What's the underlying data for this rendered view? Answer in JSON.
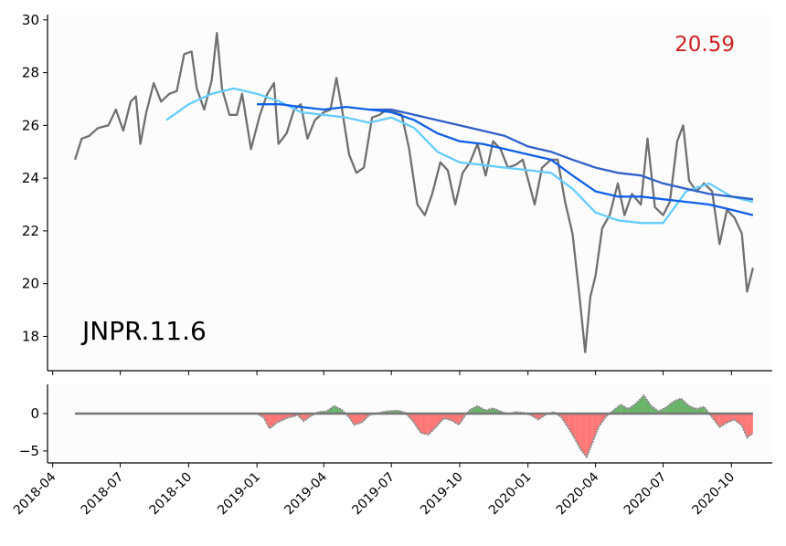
{
  "chart_data": [
    {
      "type": "line",
      "panel": "price",
      "annotation": "JNPR.11.6",
      "last_value_label": "20.59",
      "ylim": [
        16.7,
        30.2
      ],
      "yticks": [
        18,
        20,
        22,
        24,
        26,
        28,
        30
      ],
      "colors": {
        "price": "#707070",
        "short_ma": "#66ccff",
        "mid_ma": "#1060e8",
        "long_ma": "#3060c8",
        "last_value": "#cc2222"
      },
      "series": [
        {
          "key": "price",
          "values": [
            [
              "2018-05-01",
              24.7
            ],
            [
              "2018-05-10",
              25.5
            ],
            [
              "2018-05-20",
              25.6
            ],
            [
              "2018-06-01",
              25.9
            ],
            [
              "2018-06-15",
              26.0
            ],
            [
              "2018-06-25",
              26.6
            ],
            [
              "2018-07-05",
              25.8
            ],
            [
              "2018-07-15",
              26.9
            ],
            [
              "2018-07-22",
              27.1
            ],
            [
              "2018-07-28",
              25.3
            ],
            [
              "2018-08-05",
              26.5
            ],
            [
              "2018-08-15",
              27.6
            ],
            [
              "2018-08-25",
              26.9
            ],
            [
              "2018-09-05",
              27.2
            ],
            [
              "2018-09-15",
              27.3
            ],
            [
              "2018-09-25",
              28.7
            ],
            [
              "2018-10-05",
              28.8
            ],
            [
              "2018-10-12",
              27.4
            ],
            [
              "2018-10-22",
              26.6
            ],
            [
              "2018-11-01",
              27.7
            ],
            [
              "2018-11-08",
              29.5
            ],
            [
              "2018-11-15",
              27.4
            ],
            [
              "2018-11-25",
              26.4
            ],
            [
              "2018-12-05",
              26.4
            ],
            [
              "2018-12-12",
              27.2
            ],
            [
              "2018-12-24",
              25.1
            ],
            [
              "2019-01-05",
              26.4
            ],
            [
              "2019-01-15",
              27.2
            ],
            [
              "2019-01-24",
              27.6
            ],
            [
              "2019-01-30",
              25.3
            ],
            [
              "2019-02-10",
              25.7
            ],
            [
              "2019-02-20",
              26.6
            ],
            [
              "2019-03-01",
              26.8
            ],
            [
              "2019-03-10",
              25.5
            ],
            [
              "2019-03-20",
              26.2
            ],
            [
              "2019-04-01",
              26.5
            ],
            [
              "2019-04-10",
              26.6
            ],
            [
              "2019-04-18",
              27.8
            ],
            [
              "2019-04-25",
              26.7
            ],
            [
              "2019-05-05",
              24.9
            ],
            [
              "2019-05-15",
              24.2
            ],
            [
              "2019-05-25",
              24.4
            ],
            [
              "2019-06-05",
              26.3
            ],
            [
              "2019-06-15",
              26.4
            ],
            [
              "2019-06-25",
              26.6
            ],
            [
              "2019-07-05",
              26.5
            ],
            [
              "2019-07-15",
              26.4
            ],
            [
              "2019-07-25",
              25.1
            ],
            [
              "2019-08-05",
              23.0
            ],
            [
              "2019-08-15",
              22.6
            ],
            [
              "2019-08-25",
              23.4
            ],
            [
              "2019-09-05",
              24.6
            ],
            [
              "2019-09-15",
              24.3
            ],
            [
              "2019-09-25",
              23.0
            ],
            [
              "2019-10-05",
              24.2
            ],
            [
              "2019-10-15",
              24.6
            ],
            [
              "2019-10-25",
              25.3
            ],
            [
              "2019-11-05",
              24.1
            ],
            [
              "2019-11-15",
              25.4
            ],
            [
              "2019-11-25",
              25.1
            ],
            [
              "2019-12-05",
              24.4
            ],
            [
              "2019-12-15",
              24.5
            ],
            [
              "2019-12-25",
              24.7
            ],
            [
              "2020-01-10",
              23.0
            ],
            [
              "2020-01-20",
              24.4
            ],
            [
              "2020-02-01",
              24.7
            ],
            [
              "2020-02-10",
              24.7
            ],
            [
              "2020-02-20",
              23.1
            ],
            [
              "2020-03-01",
              21.9
            ],
            [
              "2020-03-10",
              19.6
            ],
            [
              "2020-03-18",
              17.4
            ],
            [
              "2020-03-25",
              19.5
            ],
            [
              "2020-04-01",
              20.3
            ],
            [
              "2020-04-10",
              22.1
            ],
            [
              "2020-04-20",
              22.6
            ],
            [
              "2020-05-01",
              23.8
            ],
            [
              "2020-05-10",
              22.6
            ],
            [
              "2020-05-20",
              23.4
            ],
            [
              "2020-06-01",
              23.0
            ],
            [
              "2020-06-10",
              25.5
            ],
            [
              "2020-06-20",
              22.9
            ],
            [
              "2020-07-01",
              22.6
            ],
            [
              "2020-07-10",
              23.1
            ],
            [
              "2020-07-20",
              25.4
            ],
            [
              "2020-07-28",
              26.0
            ],
            [
              "2020-08-05",
              23.9
            ],
            [
              "2020-08-15",
              23.5
            ],
            [
              "2020-08-25",
              23.8
            ],
            [
              "2020-09-05",
              23.5
            ],
            [
              "2020-09-15",
              21.5
            ],
            [
              "2020-09-25",
              22.8
            ],
            [
              "2020-10-05",
              22.5
            ],
            [
              "2020-10-15",
              21.9
            ],
            [
              "2020-10-22",
              19.7
            ],
            [
              "2020-10-30",
              20.6
            ]
          ]
        },
        {
          "key": "short_ma",
          "values": [
            [
              "2018-09-01",
              26.2
            ],
            [
              "2018-10-01",
              26.8
            ],
            [
              "2018-11-01",
              27.2
            ],
            [
              "2018-12-01",
              27.4
            ],
            [
              "2019-01-01",
              27.2
            ],
            [
              "2019-02-01",
              26.9
            ],
            [
              "2019-03-01",
              26.5
            ],
            [
              "2019-04-01",
              26.4
            ],
            [
              "2019-05-01",
              26.3
            ],
            [
              "2019-06-01",
              26.1
            ],
            [
              "2019-07-01",
              26.3
            ],
            [
              "2019-08-01",
              25.9
            ],
            [
              "2019-09-01",
              25.0
            ],
            [
              "2019-10-01",
              24.6
            ],
            [
              "2019-11-01",
              24.5
            ],
            [
              "2019-12-01",
              24.4
            ],
            [
              "2020-01-01",
              24.3
            ],
            [
              "2020-02-01",
              24.2
            ],
            [
              "2020-03-01",
              23.6
            ],
            [
              "2020-04-01",
              22.7
            ],
            [
              "2020-05-01",
              22.4
            ],
            [
              "2020-06-01",
              22.3
            ],
            [
              "2020-07-01",
              22.3
            ],
            [
              "2020-08-01",
              23.5
            ],
            [
              "2020-09-01",
              23.8
            ],
            [
              "2020-10-01",
              23.3
            ],
            [
              "2020-10-30",
              23.1
            ]
          ]
        },
        {
          "key": "mid_ma",
          "values": [
            [
              "2019-01-01",
              26.8
            ],
            [
              "2019-02-01",
              26.8
            ],
            [
              "2019-03-01",
              26.7
            ],
            [
              "2019-04-01",
              26.6
            ],
            [
              "2019-05-01",
              26.7
            ],
            [
              "2019-06-01",
              26.6
            ],
            [
              "2019-07-01",
              26.5
            ],
            [
              "2019-08-01",
              26.2
            ],
            [
              "2019-09-01",
              25.7
            ],
            [
              "2019-10-01",
              25.4
            ],
            [
              "2019-11-01",
              25.3
            ],
            [
              "2019-12-01",
              25.1
            ],
            [
              "2020-01-01",
              24.9
            ],
            [
              "2020-02-01",
              24.7
            ],
            [
              "2020-03-01",
              24.1
            ],
            [
              "2020-04-01",
              23.5
            ],
            [
              "2020-05-01",
              23.3
            ],
            [
              "2020-06-01",
              23.3
            ],
            [
              "2020-07-01",
              23.2
            ],
            [
              "2020-08-01",
              23.1
            ],
            [
              "2020-09-01",
              23.0
            ],
            [
              "2020-10-01",
              22.8
            ],
            [
              "2020-10-30",
              22.6
            ]
          ]
        },
        {
          "key": "long_ma",
          "values": [
            [
              "2019-06-01",
              26.6
            ],
            [
              "2019-07-01",
              26.6
            ],
            [
              "2019-08-01",
              26.4
            ],
            [
              "2019-09-01",
              26.2
            ],
            [
              "2019-10-01",
              26.0
            ],
            [
              "2019-11-01",
              25.8
            ],
            [
              "2019-12-01",
              25.6
            ],
            [
              "2020-01-01",
              25.2
            ],
            [
              "2020-02-01",
              25.0
            ],
            [
              "2020-03-01",
              24.7
            ],
            [
              "2020-04-01",
              24.4
            ],
            [
              "2020-05-01",
              24.2
            ],
            [
              "2020-06-01",
              24.1
            ],
            [
              "2020-07-01",
              23.8
            ],
            [
              "2020-08-01",
              23.6
            ],
            [
              "2020-09-01",
              23.4
            ],
            [
              "2020-10-01",
              23.3
            ],
            [
              "2020-10-30",
              23.2
            ]
          ]
        }
      ]
    },
    {
      "type": "area",
      "panel": "oscillator",
      "ylim": [
        -6.6,
        3.9
      ],
      "yticks": [
        0,
        -5
      ],
      "colors": {
        "positive": "#6ab46a",
        "negative": "#ff7777",
        "line": "#888888",
        "zero_line": "#777777"
      },
      "values": [
        [
          "2018-05-01",
          0
        ],
        [
          "2019-01-01",
          0
        ],
        [
          "2019-01-10",
          -0.5
        ],
        [
          "2019-01-18",
          -2.0
        ],
        [
          "2019-01-28",
          -1.2
        ],
        [
          "2019-02-10",
          -0.6
        ],
        [
          "2019-02-25",
          -0.2
        ],
        [
          "2019-03-05",
          -1.0
        ],
        [
          "2019-03-15",
          -0.3
        ],
        [
          "2019-03-25",
          0.2
        ],
        [
          "2019-04-05",
          0.3
        ],
        [
          "2019-04-15",
          1.0
        ],
        [
          "2019-04-25",
          0.5
        ],
        [
          "2019-05-05",
          -0.5
        ],
        [
          "2019-05-12",
          -1.5
        ],
        [
          "2019-05-22",
          -1.2
        ],
        [
          "2019-06-01",
          -0.2
        ],
        [
          "2019-06-15",
          0.1
        ],
        [
          "2019-06-25",
          0.3
        ],
        [
          "2019-07-10",
          0.4
        ],
        [
          "2019-07-20",
          0.1
        ],
        [
          "2019-07-30",
          -1.0
        ],
        [
          "2019-08-10",
          -2.6
        ],
        [
          "2019-08-20",
          -2.8
        ],
        [
          "2019-08-30",
          -1.8
        ],
        [
          "2019-09-10",
          -0.6
        ],
        [
          "2019-09-20",
          -0.9
        ],
        [
          "2019-09-30",
          -1.5
        ],
        [
          "2019-10-08",
          -0.3
        ],
        [
          "2019-10-15",
          0.5
        ],
        [
          "2019-10-25",
          1.0
        ],
        [
          "2019-11-05",
          0.4
        ],
        [
          "2019-11-15",
          0.7
        ],
        [
          "2019-11-25",
          0.3
        ],
        [
          "2019-12-05",
          -0.1
        ],
        [
          "2019-12-15",
          0.2
        ],
        [
          "2019-12-25",
          0.1
        ],
        [
          "2020-01-05",
          -0.2
        ],
        [
          "2020-01-15",
          -0.8
        ],
        [
          "2020-01-25",
          -0.1
        ],
        [
          "2020-02-05",
          0.2
        ],
        [
          "2020-02-15",
          -0.5
        ],
        [
          "2020-02-25",
          -2.0
        ],
        [
          "2020-03-05",
          -3.5
        ],
        [
          "2020-03-12",
          -4.8
        ],
        [
          "2020-03-20",
          -5.8
        ],
        [
          "2020-03-28",
          -3.8
        ],
        [
          "2020-04-05",
          -1.8
        ],
        [
          "2020-04-15",
          -0.4
        ],
        [
          "2020-04-25",
          0.4
        ],
        [
          "2020-05-05",
          1.2
        ],
        [
          "2020-05-15",
          0.6
        ],
        [
          "2020-05-25",
          1.3
        ],
        [
          "2020-06-05",
          2.4
        ],
        [
          "2020-06-15",
          1.0
        ],
        [
          "2020-06-25",
          0.3
        ],
        [
          "2020-07-05",
          0.8
        ],
        [
          "2020-07-15",
          1.6
        ],
        [
          "2020-07-25",
          2.0
        ],
        [
          "2020-08-05",
          1.0
        ],
        [
          "2020-08-15",
          0.6
        ],
        [
          "2020-08-25",
          0.9
        ],
        [
          "2020-09-05",
          -0.5
        ],
        [
          "2020-09-15",
          -1.8
        ],
        [
          "2020-09-25",
          -1.2
        ],
        [
          "2020-10-05",
          -0.8
        ],
        [
          "2020-10-15",
          -1.6
        ],
        [
          "2020-10-22",
          -3.2
        ],
        [
          "2020-10-30",
          -2.6
        ]
      ]
    }
  ],
  "x_axis": {
    "range": [
      "2018-03-25",
      "2020-11-25"
    ],
    "ticks": [
      "2018-04",
      "2018-07",
      "2018-10",
      "2019-01",
      "2019-04",
      "2019-07",
      "2019-10",
      "2020-01",
      "2020-04",
      "2020-07",
      "2020-10"
    ]
  }
}
